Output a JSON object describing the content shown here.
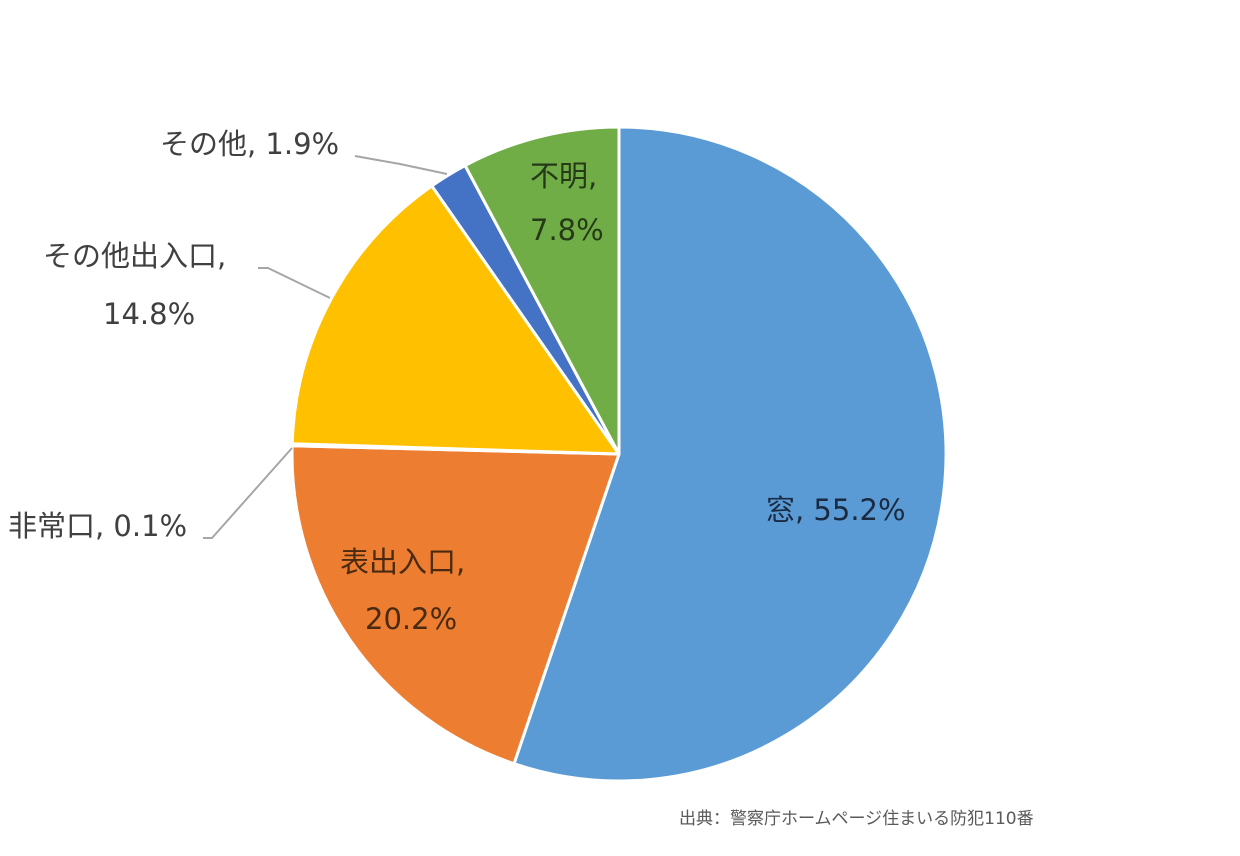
{
  "chart_data": {
    "type": "pie",
    "title": "",
    "start_angle_deg": 0,
    "direction": "clockwise",
    "slices": [
      {
        "label": "窓",
        "value": 55.2,
        "display": "窓, 55.2%",
        "color": "#5B9BD5"
      },
      {
        "label": "表出入口",
        "value": 20.2,
        "display": "表出入口, 20.2%",
        "color": "#ED7D31"
      },
      {
        "label": "非常口",
        "value": 0.1,
        "display": "非常口, 0.1%",
        "color": "#A5A5A5"
      },
      {
        "label": "その他出入口",
        "value": 14.8,
        "display": "その他出入口, 14.8%",
        "color": "#FFC000"
      },
      {
        "label": "その他",
        "value": 1.9,
        "display": "その他, 1.9%",
        "color": "#4472C4"
      },
      {
        "label": "不明",
        "value": 7.8,
        "display": "不明, 7.8%",
        "color": "#70AD47"
      }
    ],
    "legend": "none",
    "source_note": "出典：警察庁ホームページ住まいる防犯110番"
  },
  "labels": {
    "window": "窓, 55.2%",
    "front_line1": "表出入口,",
    "front_line2": "20.2%",
    "emergency": "非常口, 0.1%",
    "other_entrance_line1": "その他出入口,",
    "other_entrance_line2": "14.8%",
    "other": "その他, 1.9%",
    "unknown_line1": "不明,",
    "unknown_line2": "7.8%"
  },
  "source": "出典：警察庁ホームページ住まいる防犯110番"
}
